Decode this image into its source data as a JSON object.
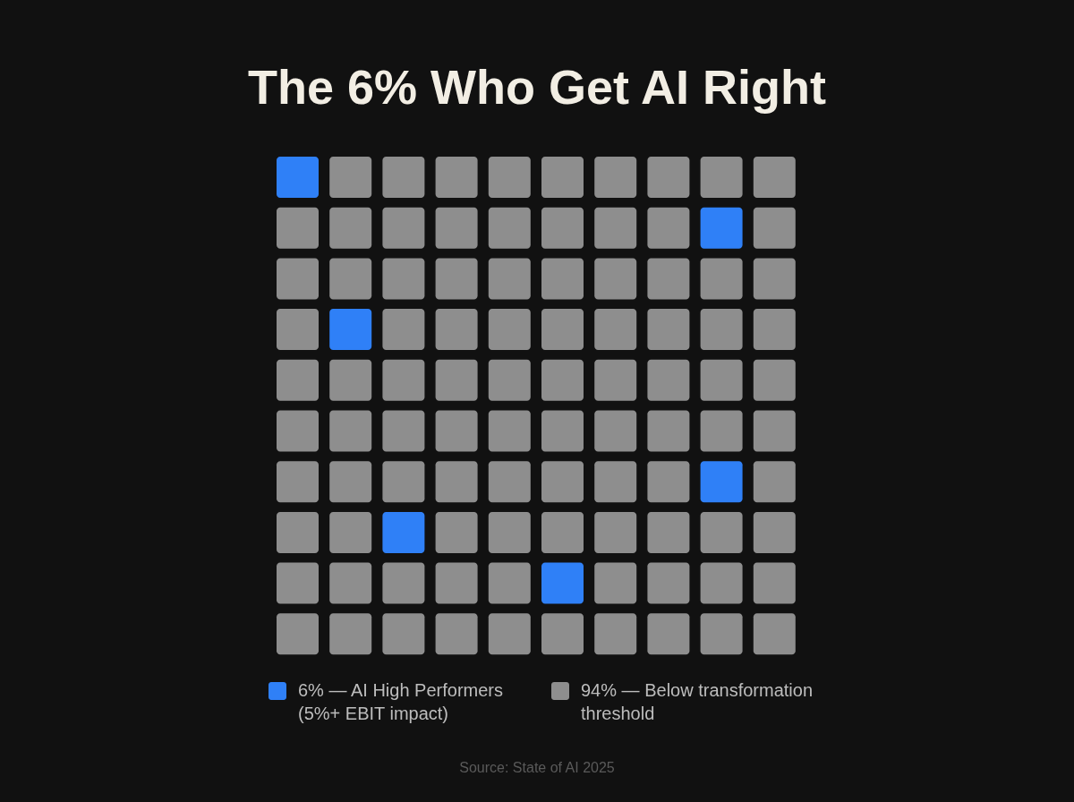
{
  "chart_data": {
    "type": "other",
    "title": "The 6% Who Get AI Right",
    "categories": [
      "— AI High Performers\n(5%+ EBIT impact)",
      "— Below transformation\nthreshold"
    ],
    "values": [
      6,
      94
    ],
    "value_labels": [
      "6%",
      "94%"
    ],
    "colors": [
      "#2f80f7",
      "#8e8e8e"
    ],
    "annotations": [
      "Source: State of AI 2025"
    ]
  }
}
